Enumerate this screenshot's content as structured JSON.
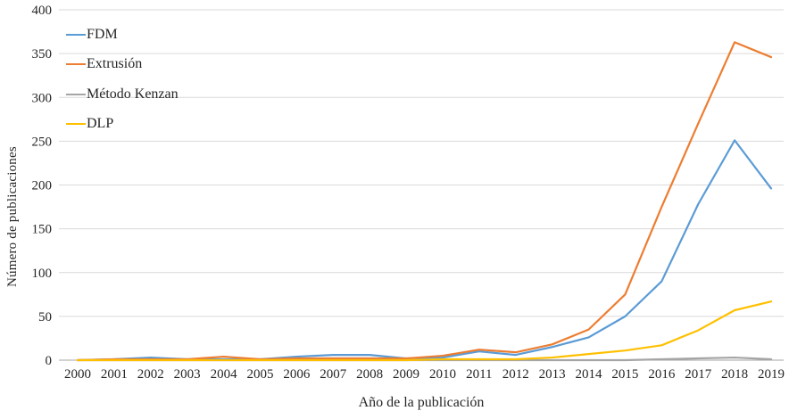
{
  "figure": {
    "background": "#ffffff",
    "text_color": "#262626",
    "gridline_color": "#d9d9d9",
    "axis_line_color": "#a6a6a6"
  },
  "chart_data": {
    "type": "line",
    "title": "",
    "xlabel": "Año de la publicación",
    "ylabel": "Número de publicaciones",
    "x": [
      2000,
      2001,
      2002,
      2003,
      2004,
      2005,
      2006,
      2007,
      2008,
      2009,
      2010,
      2011,
      2012,
      2013,
      2014,
      2015,
      2016,
      2017,
      2018,
      2019
    ],
    "ylim": [
      0,
      400
    ],
    "ytick_step": 50,
    "yticks": [
      0,
      50,
      100,
      150,
      200,
      250,
      300,
      350,
      400
    ],
    "grid": true,
    "legend_position": "top-left",
    "series": [
      {
        "name": "FDM",
        "color": "#5B9BD5",
        "values": [
          0,
          1,
          3,
          1,
          1,
          1,
          4,
          6,
          6,
          2,
          3,
          10,
          6,
          15,
          26,
          50,
          90,
          178,
          251,
          196
        ]
      },
      {
        "name": "Extrusión",
        "color": "#ED7D31",
        "values": [
          0,
          1,
          1,
          1,
          4,
          1,
          2,
          2,
          2,
          2,
          5,
          12,
          9,
          18,
          35,
          75,
          175,
          270,
          363,
          346
        ]
      },
      {
        "name": "Método Kenzan",
        "color": "#A5A5A5",
        "values": [
          0,
          0,
          0,
          0,
          0,
          0,
          0,
          0,
          0,
          0,
          0,
          0,
          0,
          0,
          0,
          0,
          1,
          2,
          3,
          1
        ]
      },
      {
        "name": "DLP",
        "color": "#FFC000",
        "values": [
          0,
          0,
          0,
          0,
          0,
          0,
          0,
          0,
          0,
          0,
          1,
          1,
          1,
          3,
          7,
          11,
          17,
          34,
          57,
          67
        ]
      }
    ]
  }
}
